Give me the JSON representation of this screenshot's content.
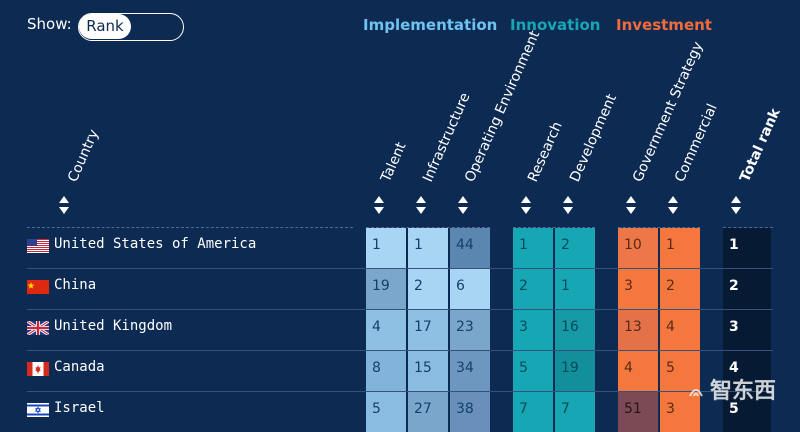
{
  "show": {
    "label": "Show:",
    "selected": "Rank"
  },
  "groups": [
    {
      "name": "Implementation",
      "color": "#6ec3f0"
    },
    {
      "name": "Innovation",
      "color": "#17a7b4"
    },
    {
      "name": "Investment",
      "color": "#f26b3a"
    }
  ],
  "columns": {
    "country": "Country",
    "talent": "Talent",
    "infrastructure": "Infrastructure",
    "operating": "Operating Environment",
    "research": "Research",
    "development": "Development",
    "gov": "Government Strategy",
    "commercial": "Commercial",
    "total": "Total rank"
  },
  "rows": [
    {
      "country": "United States of America",
      "flag": "usa",
      "talent": "1",
      "infrastructure": "1",
      "operating": "44",
      "research": "1",
      "development": "2",
      "gov": "10",
      "commercial": "1",
      "total": "1"
    },
    {
      "country": "China",
      "flag": "china",
      "talent": "19",
      "infrastructure": "2",
      "operating": "6",
      "research": "2",
      "development": "1",
      "gov": "3",
      "commercial": "2",
      "total": "2"
    },
    {
      "country": "United Kingdom",
      "flag": "uk",
      "talent": "4",
      "infrastructure": "17",
      "operating": "23",
      "research": "3",
      "development": "16",
      "gov": "13",
      "commercial": "4",
      "total": "3"
    },
    {
      "country": "Canada",
      "flag": "canada",
      "talent": "8",
      "infrastructure": "15",
      "operating": "34",
      "research": "5",
      "development": "19",
      "gov": "4",
      "commercial": "5",
      "total": "4"
    },
    {
      "country": "Israel",
      "flag": "israel",
      "talent": "5",
      "infrastructure": "27",
      "operating": "38",
      "research": "7",
      "development": "7",
      "gov": "51",
      "commercial": "3",
      "total": "5"
    }
  ],
  "watermark": {
    "text": "智东西"
  }
}
